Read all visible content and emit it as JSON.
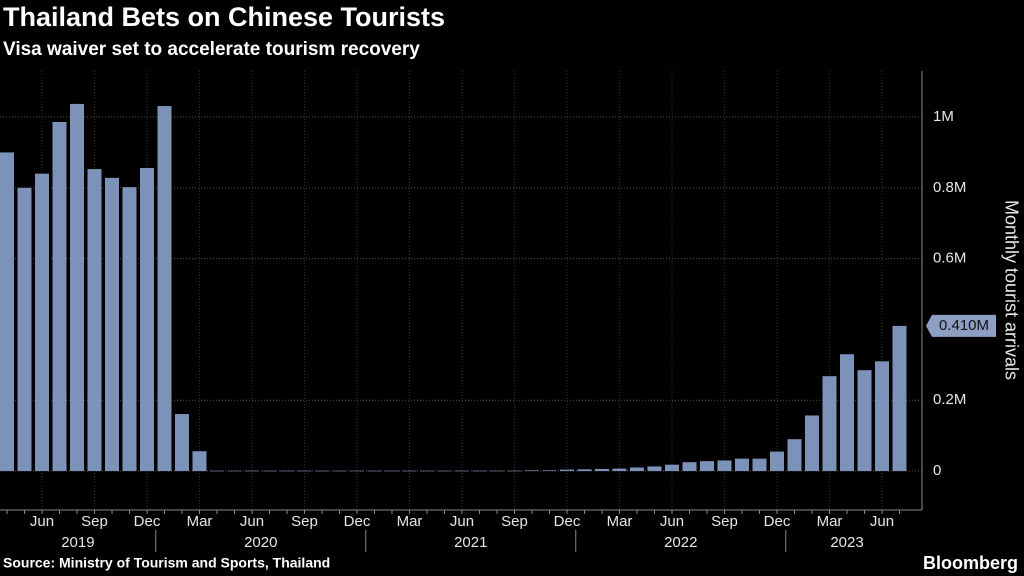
{
  "chart_data": {
    "type": "bar",
    "title": "Thailand Bets on Chinese Tourists",
    "subtitle": "Visa waiver set to accelerate tourism recovery",
    "y_axis_label": "Monthly tourist arrivals",
    "source": "Source: Ministry of Tourism and Sports, Thailand",
    "brand": "Bloomberg",
    "color": "#7d92b8",
    "categories": [
      null,
      null,
      "Jun",
      null,
      null,
      "Sep",
      null,
      null,
      "Dec",
      null,
      null,
      "Mar",
      null,
      null,
      "Jun",
      null,
      null,
      "Sep",
      null,
      null,
      "Dec",
      null,
      null,
      "Mar",
      null,
      null,
      "Jun",
      null,
      null,
      "Sep",
      null,
      null,
      "Dec",
      null,
      null,
      "Mar",
      null,
      null,
      "Jun",
      null,
      null,
      "Sep",
      null,
      null,
      "Dec",
      null,
      null,
      "Mar",
      null,
      null,
      "Jun",
      null
    ],
    "years": [
      "2019",
      "2020",
      "2021",
      "2022",
      "2023"
    ],
    "values": [
      0.9,
      0.8,
      0.84,
      0.986,
      1.037,
      0.853,
      0.828,
      0.802,
      0.856,
      1.031,
      0.161,
      0.056,
      0.001,
      0.001,
      0.001,
      0.001,
      0.001,
      0.001,
      0.001,
      0.001,
      0.001,
      0.001,
      0.001,
      0.001,
      0.001,
      0.001,
      0.001,
      0.001,
      0.001,
      0.001,
      0.002,
      0.002,
      0.004,
      0.005,
      0.006,
      0.007,
      0.01,
      0.013,
      0.018,
      0.025,
      0.028,
      0.03,
      0.035,
      0.035,
      0.055,
      0.09,
      0.157,
      0.268,
      0.33,
      0.285,
      0.31,
      0.41
    ],
    "value_labels": [
      null,
      null,
      null,
      null,
      null,
      null,
      null,
      null,
      null,
      null,
      null,
      null,
      null,
      null,
      null,
      null,
      null,
      null,
      null,
      null,
      null,
      null,
      null,
      null,
      null,
      null,
      null,
      null,
      null,
      null,
      null,
      null,
      null,
      null,
      null,
      null,
      null,
      null,
      null,
      null,
      null,
      null,
      null,
      null,
      null,
      null,
      null,
      null,
      null,
      null,
      null,
      "0.410M"
    ],
    "ylim": [
      -0.11,
      1.13
    ],
    "yticks": [
      0,
      {
        "value": 0.2,
        "label": "0.2M"
      },
      {
        "value": 0.6,
        "label": "0.6M"
      },
      {
        "value": 0.8,
        "label": "0.8M"
      },
      {
        "value": 1,
        "label": "1M"
      }
    ],
    "grid": true
  }
}
